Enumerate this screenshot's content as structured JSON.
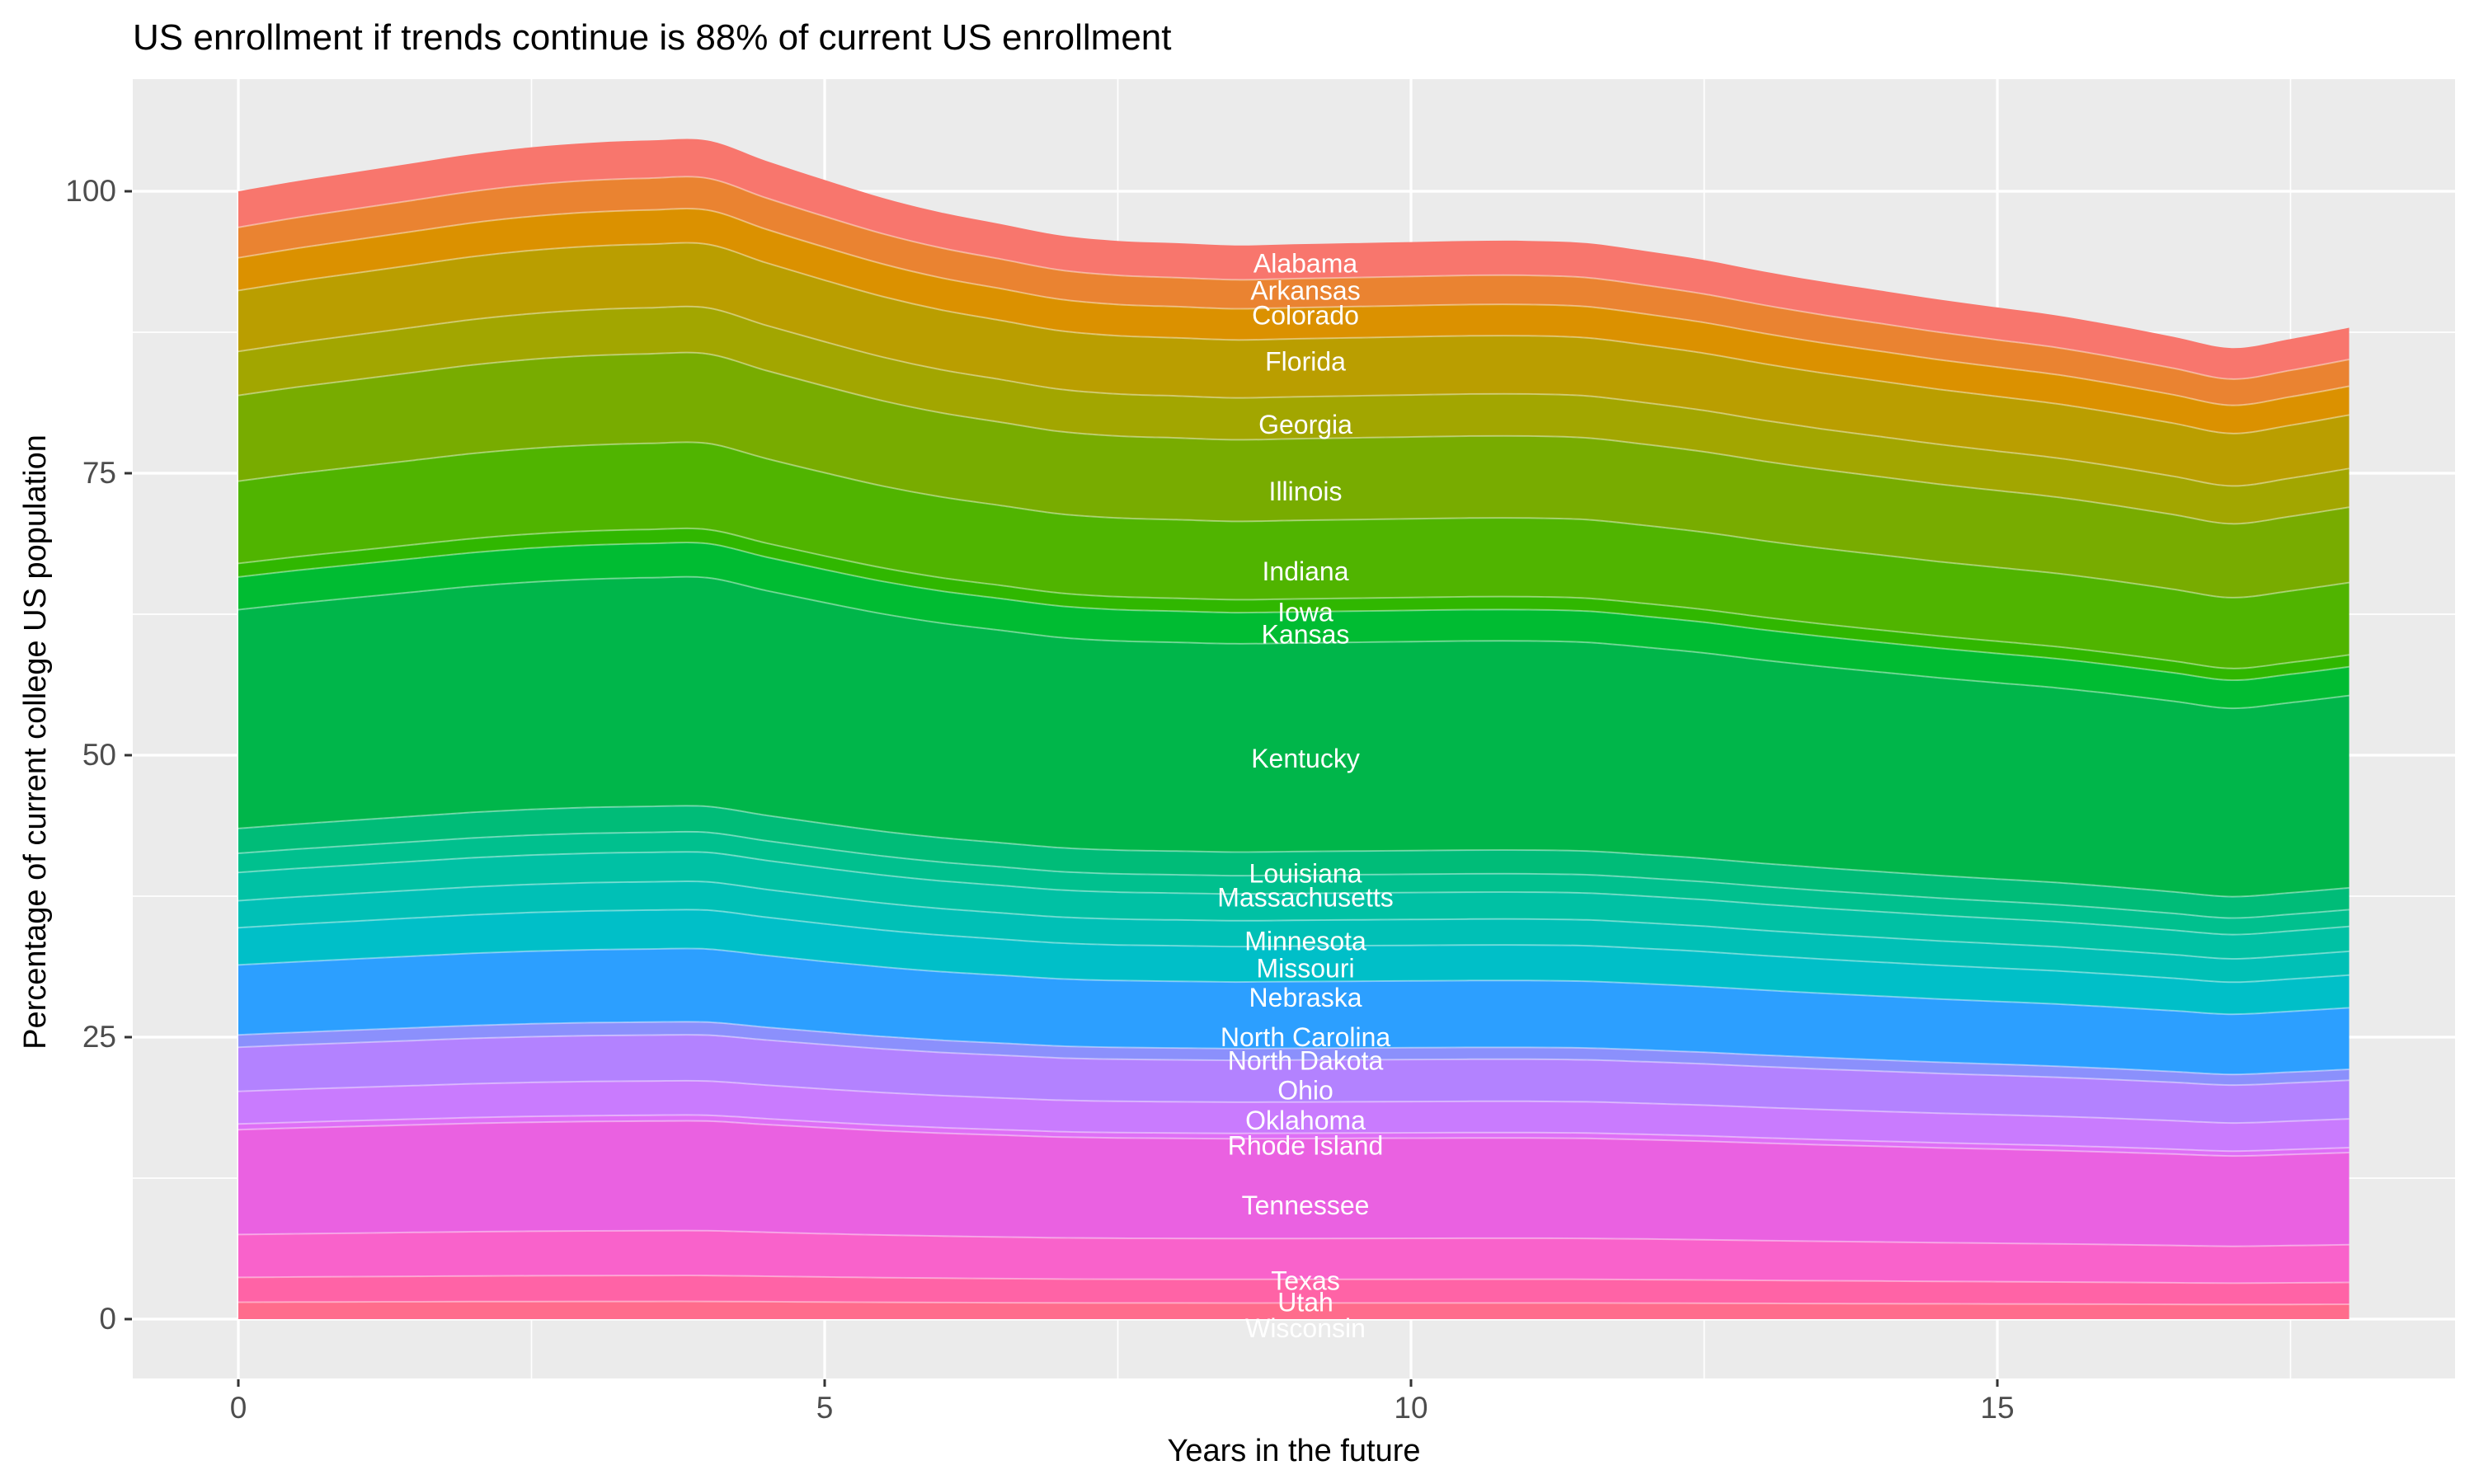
{
  "title": "US enrollment if trends continue is 88% of current US enrollment",
  "axes": {
    "x_label": "Years in the future",
    "y_label": "Percentage of current college US population",
    "x_tick_labels": [
      "0",
      "5",
      "10",
      "15"
    ],
    "x_tick_values": [
      0,
      5,
      10,
      15
    ],
    "x_minor_ticks": [
      2.5,
      7.5,
      12.5,
      17.5
    ],
    "y_tick_labels": [
      "0",
      "25",
      "50",
      "75",
      "100"
    ],
    "y_tick_values": [
      0,
      25,
      50,
      75,
      100
    ],
    "y_minor_ticks": [
      12.5,
      37.5,
      62.5,
      87.5
    ],
    "xlim": [
      -0.9,
      18.9
    ],
    "ylim": [
      -5.2,
      110
    ]
  },
  "chart_data": {
    "type": "area",
    "stacked": true,
    "legend_position": "none",
    "grid": true,
    "xlabel": "Years in the future",
    "ylabel": "Percentage of current college US population",
    "x": [
      0,
      0.5,
      1,
      1.5,
      2,
      2.5,
      3,
      3.5,
      4,
      4.5,
      5,
      5.5,
      6,
      6.5,
      7,
      7.5,
      8,
      8.5,
      9,
      9.5,
      10,
      10.5,
      11,
      11.5,
      12,
      12.5,
      13,
      13.5,
      14,
      14.5,
      15,
      15.5,
      16,
      16.5,
      17,
      17.5,
      18
    ],
    "total_pct": [
      100,
      100.9,
      101.7,
      102.5,
      103.3,
      103.9,
      104.3,
      104.5,
      104.5,
      102.7,
      101,
      99.4,
      98.1,
      97.1,
      96.1,
      95.6,
      95.4,
      95.2,
      95.3,
      95.4,
      95.5,
      95.6,
      95.6,
      95.4,
      94.7,
      93.9,
      92.9,
      92,
      91.2,
      90.4,
      89.7,
      89,
      88.1,
      87.1,
      86.1,
      86.9,
      87.9
    ],
    "start_total_pct": 100,
    "end_total_pct": 88,
    "label_x": 9.1,
    "series": [
      {
        "name": "Alabama",
        "share_pct": 3.2,
        "color": "#F8766D",
        "label_y": 93.6
      },
      {
        "name": "Arkansas",
        "share_pct": 2.7,
        "color": "#EA8331",
        "label_y": 91.2
      },
      {
        "name": "Colorado",
        "share_pct": 2.9,
        "color": "#DB9100",
        "label_y": 89.0
      },
      {
        "name": "Florida",
        "share_pct": 5.4,
        "color": "#BA9E00",
        "label_y": 84.9
      },
      {
        "name": "Georgia",
        "share_pct": 3.9,
        "color": "#A2A600",
        "label_y": 79.3
      },
      {
        "name": "Illinois",
        "share_pct": 7.6,
        "color": "#78AC00",
        "label_y": 73.4
      },
      {
        "name": "Indiana",
        "share_pct": 7.3,
        "color": "#50B400",
        "label_y": 66.3
      },
      {
        "name": "Iowa",
        "share_pct": 1.2,
        "color": "#30B700",
        "label_y": 62.7
      },
      {
        "name": "Kansas",
        "share_pct": 2.9,
        "color": "#00BC32",
        "label_y": 60.7
      },
      {
        "name": "Kentucky",
        "share_pct": 19.4,
        "color": "#00B64A",
        "label_y": 49.7
      },
      {
        "name": "Louisiana",
        "share_pct": 2.2,
        "color": "#00BC78",
        "label_y": 39.5
      },
      {
        "name": "Massachusetts",
        "share_pct": 1.7,
        "color": "#00C08E",
        "label_y": 37.4
      },
      {
        "name": "Minnesota",
        "share_pct": 2.5,
        "color": "#00C1A4",
        "label_y": 33.5
      },
      {
        "name": "Missouri",
        "share_pct": 2.4,
        "color": "#00C0B6",
        "label_y": 31.1
      },
      {
        "name": "Nebraska",
        "share_pct": 3.3,
        "color": "#00BFC8",
        "label_y": 28.5
      },
      {
        "name": "North Carolina",
        "share_pct": 6.2,
        "color": "#2C9FFF",
        "label_y": 25.0
      },
      {
        "name": "North Dakota",
        "share_pct": 1.1,
        "color": "#8B90FC",
        "label_y": 22.9
      },
      {
        "name": "Ohio",
        "share_pct": 3.9,
        "color": "#B382FF",
        "label_y": 20.3
      },
      {
        "name": "Oklahoma",
        "share_pct": 2.9,
        "color": "#C97BFE",
        "label_y": 17.6
      },
      {
        "name": "Rhode Island",
        "share_pct": 0.5,
        "color": "#DE6FF6",
        "label_y": 15.4
      },
      {
        "name": "Tennessee",
        "share_pct": 9.3,
        "color": "#EA61E1",
        "label_y": 10.1
      },
      {
        "name": "Texas",
        "share_pct": 3.8,
        "color": "#F962CB",
        "label_y": 3.4
      },
      {
        "name": "Utah",
        "share_pct": 2.2,
        "color": "#FF63A6",
        "label_y": 1.5
      },
      {
        "name": "Wisconsin",
        "share_pct": 1.5,
        "color": "#FF6C8C",
        "label_y": -0.8
      }
    ]
  },
  "style": {
    "panel_bg": "#EBEBEB",
    "grid_color": "#FFFFFF",
    "axis_text_color": "#4D4D4D",
    "tick_color": "#333333",
    "title_color": "#000000",
    "state_label_color": "#FFFFFF",
    "background": "#FFFFFF",
    "band_separator": "rgba(255,255,255,0.4)"
  }
}
